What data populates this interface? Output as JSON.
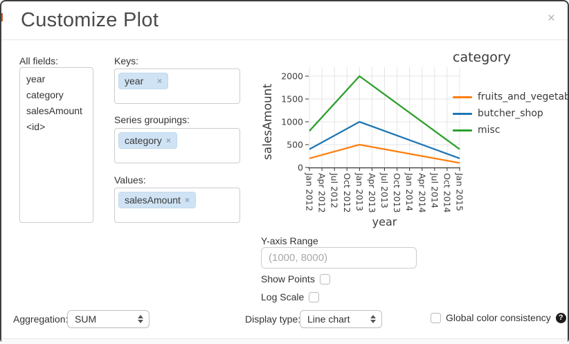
{
  "dialog": {
    "title": "Customize Plot",
    "close_glyph": "×"
  },
  "fields_panel": {
    "label": "All fields:",
    "items": [
      "year",
      "category",
      "salesAmount",
      "<id>"
    ]
  },
  "selectors": {
    "keys": {
      "label": "Keys:",
      "tags": [
        "year"
      ]
    },
    "series_groupings": {
      "label": "Series groupings:",
      "tags": [
        "category"
      ]
    },
    "values": {
      "label": "Values:",
      "tags": [
        "salesAmount"
      ]
    }
  },
  "icons": {
    "remove": "×",
    "help": "?"
  },
  "y_axis_range": {
    "label": "Y-axis Range",
    "placeholder": "(1000, 8000)",
    "value": ""
  },
  "options": {
    "show_points_label": "Show Points",
    "log_scale_label": "Log Scale",
    "global_color_label": "Global color consistency"
  },
  "aggregation": {
    "label": "Aggregation:",
    "value": "SUM"
  },
  "display_type": {
    "label": "Display type:",
    "value": "Line chart"
  },
  "chart_data": {
    "type": "line",
    "xlabel": "year",
    "ylabel": "salesAmount",
    "x_ticks": [
      "Jan 2012",
      "Apr 2012",
      "Jul 2012",
      "Oct 2012",
      "Jan 2013",
      "Apr 2013",
      "Jul 2013",
      "Oct 2013",
      "Jan 2014",
      "Apr 2014",
      "Jul 2014",
      "Oct 2014",
      "Jan 2015"
    ],
    "y_ticks": [
      0,
      500,
      1000,
      1500,
      2000
    ],
    "ylim": [
      0,
      2000
    ],
    "grid": true,
    "legend_title": "category",
    "legend_position": "right",
    "series": [
      {
        "name": "fruits_and_vegetables",
        "color": "#ff7f0e",
        "points": [
          {
            "x": "Jan 2012",
            "y": 200
          },
          {
            "x": "Jan 2013",
            "y": 500
          },
          {
            "x": "Jan 2015",
            "y": 100
          }
        ]
      },
      {
        "name": "butcher_shop",
        "color": "#1f77b4",
        "points": [
          {
            "x": "Jan 2012",
            "y": 400
          },
          {
            "x": "Jan 2013",
            "y": 1000
          },
          {
            "x": "Jan 2015",
            "y": 200
          }
        ]
      },
      {
        "name": "misc",
        "color": "#2ca02c",
        "points": [
          {
            "x": "Jan 2012",
            "y": 800
          },
          {
            "x": "Jan 2013",
            "y": 2000
          },
          {
            "x": "Jan 2015",
            "y": 400
          }
        ]
      }
    ]
  }
}
